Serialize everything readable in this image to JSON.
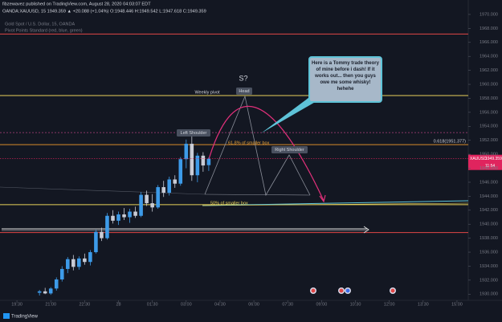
{
  "header": {
    "publisher": "fibzewavez published on TradingView.com, August 28, 2020 04:03:07 EDT",
    "quote": "OANDA:XAUUSD, 15  1949.359 ▲ +20.088 (+1.04%) O:1948.446 H:1949.542 L:1947.618 C:1949.359",
    "logo": "TradingView"
  },
  "chart_data": {
    "type": "candlestick",
    "title": "Gold Spot / U.S. Dollar, 15, OANDA",
    "subtitle": "Pivot Points Standard (red, blue, green)",
    "x": [
      4,
      5,
      6,
      7,
      8,
      9,
      10,
      11,
      12,
      13,
      14,
      15,
      16,
      17,
      18,
      19,
      20,
      21,
      22,
      23,
      24,
      25,
      26,
      27,
      28,
      29,
      30,
      31,
      32,
      33,
      34
    ],
    "open": [
      1930.2,
      1930.4,
      1930.1,
      1930.8,
      1932.1,
      1933.6,
      1935.0,
      1933.9,
      1935.1,
      1934.6,
      1936.0,
      1938.9,
      1938.0,
      1941.2,
      1940.5,
      1941.4,
      1941.0,
      1941.8,
      1941.2,
      1944.2,
      1943.0,
      1942.4,
      1945.3,
      1944.5,
      1946.4,
      1945.8,
      1949.3,
      1951.5,
      1947.0,
      1949.8,
      1948.446
    ],
    "high": [
      1930.6,
      1930.9,
      1931.0,
      1932.4,
      1934.0,
      1935.3,
      1935.6,
      1935.4,
      1935.8,
      1936.3,
      1939.2,
      1939.5,
      1941.6,
      1942.0,
      1941.8,
      1942.3,
      1942.2,
      1942.5,
      1944.6,
      1944.8,
      1944.3,
      1945.6,
      1946.2,
      1946.8,
      1947.0,
      1949.6,
      1952.1,
      1952.6,
      1950.2,
      1950.3,
      1949.542
    ],
    "low": [
      1929.8,
      1930.0,
      1929.9,
      1930.5,
      1931.8,
      1933.0,
      1933.4,
      1933.5,
      1934.2,
      1934.1,
      1935.8,
      1937.6,
      1937.8,
      1940.1,
      1939.9,
      1940.6,
      1940.2,
      1940.9,
      1941.0,
      1942.6,
      1941.8,
      1942.2,
      1943.9,
      1944.1,
      1945.2,
      1945.5,
      1948.0,
      1946.2,
      1946.0,
      1947.5,
      1947.618
    ],
    "close": [
      1930.4,
      1930.1,
      1930.8,
      1932.1,
      1933.6,
      1935.0,
      1933.9,
      1935.1,
      1934.6,
      1936.0,
      1938.9,
      1938.0,
      1941.2,
      1940.5,
      1941.4,
      1941.0,
      1941.8,
      1941.2,
      1944.2,
      1943.0,
      1942.4,
      1945.3,
      1944.5,
      1946.4,
      1945.8,
      1949.3,
      1951.5,
      1947.0,
      1949.8,
      1948.4,
      1949.359
    ],
    "up_color": "#3d9be9",
    "down_color": "#c9ccd6",
    "xlim": [
      -3,
      80
    ],
    "xticks": [
      {
        "value": 0,
        "label": "19:30"
      },
      {
        "value": 6,
        "label": "21:00"
      },
      {
        "value": 12,
        "label": "22:30"
      },
      {
        "value": 18,
        "label": "28"
      },
      {
        "value": 24,
        "label": "01:30"
      },
      {
        "value": 30,
        "label": "03:00"
      },
      {
        "value": 36,
        "label": "04:30"
      },
      {
        "value": 42,
        "label": "06:00"
      },
      {
        "value": 48,
        "label": "07:30"
      },
      {
        "value": 54,
        "label": "09:00"
      },
      {
        "value": 60,
        "label": "10:30"
      },
      {
        "value": 66,
        "label": "12:00"
      },
      {
        "value": 72,
        "label": "13:30"
      },
      {
        "value": 78,
        "label": "15:00"
      }
    ],
    "ylim": [
      1929,
      1970.5
    ],
    "yticks": [
      {
        "value": 1930,
        "label": "1930.000"
      },
      {
        "value": 1932,
        "label": "1932.000"
      },
      {
        "value": 1934,
        "label": "1934.000"
      },
      {
        "value": 1936,
        "label": "1936.000"
      },
      {
        "value": 1938,
        "label": "1938.000"
      },
      {
        "value": 1940,
        "label": "1940.000"
      },
      {
        "value": 1942,
        "label": "1942.000"
      },
      {
        "value": 1944,
        "label": "1944.000"
      },
      {
        "value": 1946,
        "label": "1946.000"
      },
      {
        "value": 1948,
        "label": "1948.000"
      },
      {
        "value": 1950,
        "label": "1950.000"
      },
      {
        "value": 1952,
        "label": "1952.000"
      },
      {
        "value": 1954,
        "label": "1954.000"
      },
      {
        "value": 1956,
        "label": "1956.000"
      },
      {
        "value": 1958,
        "label": "1958.000"
      },
      {
        "value": 1960,
        "label": "1960.000"
      },
      {
        "value": 1962,
        "label": "1962.000"
      },
      {
        "value": 1964,
        "label": "1964.000"
      },
      {
        "value": 1966,
        "label": "1966.000"
      },
      {
        "value": 1968,
        "label": "1968.000"
      },
      {
        "value": 1970,
        "label": "1970.000"
      }
    ],
    "levels": [
      {
        "value": 1967.2,
        "color": "#e04646"
      },
      {
        "value": 1958.4,
        "color": "#e8d25a",
        "label": "Weekly pivot"
      },
      {
        "value": 1953.1,
        "color": "#b0407a",
        "dashed": true
      },
      {
        "value": 1951.377,
        "color": "#d98c2b",
        "label": "0.618(1951.377)"
      },
      {
        "value": 1942.8,
        "color": "#e8d25a"
      },
      {
        "value": 1938.8,
        "color": "#e04646"
      }
    ],
    "price_tag": {
      "symbol": "XAUUSD",
      "timer": "11:54",
      "color": "#e0245e"
    },
    "annotations": {
      "s": "S?",
      "head": "Head",
      "left_shoulder": "Left Shoulder",
      "right_shoulder": "Right Shoulder",
      "fib618": "61.8% of smaller box",
      "fib50": "50% of smaller box",
      "callout": "Here is a Tommy trade theory of mine before i dash! If it works out... then you guys owe me some whisky! hehehe"
    }
  }
}
